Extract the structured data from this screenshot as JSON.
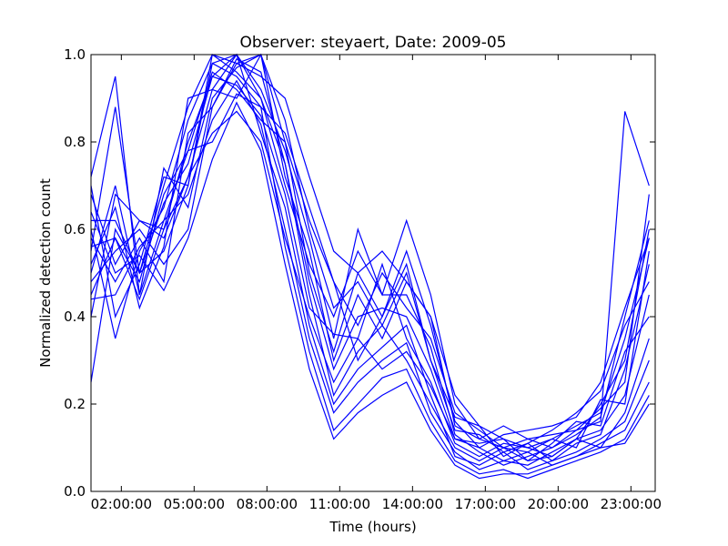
{
  "chart_data": {
    "type": "line",
    "title": "Observer: steyaert, Date: 2009-05",
    "xlabel": "Time (hours)",
    "ylabel": "Normalized detection count",
    "x_unit": "hour of day",
    "xlim": [
      0.75,
      24.0
    ],
    "ylim": [
      0.0,
      1.0
    ],
    "x_ticks": [
      2,
      5,
      8,
      11,
      14,
      17,
      20,
      23
    ],
    "x_tick_labels": [
      "02:00:00",
      "05:00:00",
      "08:00:00",
      "11:00:00",
      "14:00:00",
      "17:00:00",
      "20:00:00",
      "23:00:00"
    ],
    "y_ticks": [
      0.0,
      0.2,
      0.4,
      0.6,
      0.8,
      1.0
    ],
    "y_tick_labels": [
      "0.0",
      "0.2",
      "0.4",
      "0.6",
      "0.8",
      "1.0"
    ],
    "grid": false,
    "legend": "none",
    "line_color": "#0000ff",
    "x": [
      0.75,
      1.75,
      2.75,
      3.75,
      4.75,
      5.75,
      6.75,
      7.75,
      8.75,
      9.75,
      10.75,
      11.75,
      12.75,
      13.75,
      14.75,
      15.75,
      16.75,
      17.75,
      18.75,
      19.75,
      20.75,
      21.75,
      22.75,
      23.75
    ],
    "series": [
      {
        "values": [
          0.72,
          0.95,
          0.45,
          0.62,
          0.78,
          0.96,
          0.92,
          0.85,
          0.8,
          0.62,
          0.48,
          0.38,
          0.5,
          0.42,
          0.35,
          0.18,
          0.14,
          0.1,
          0.12,
          0.1,
          0.14,
          0.16,
          0.87,
          0.7
        ]
      },
      {
        "values": [
          0.55,
          0.88,
          0.5,
          0.7,
          0.88,
          1.0,
          0.98,
          0.95,
          0.9,
          0.72,
          0.55,
          0.5,
          0.55,
          0.48,
          0.4,
          0.22,
          0.15,
          0.12,
          0.1,
          0.08,
          0.12,
          0.2,
          0.3,
          0.6
        ]
      },
      {
        "values": [
          0.45,
          0.58,
          0.44,
          0.6,
          0.8,
          0.95,
          1.0,
          0.9,
          0.7,
          0.52,
          0.4,
          0.55,
          0.45,
          0.62,
          0.45,
          0.2,
          0.12,
          0.1,
          0.09,
          0.12,
          0.15,
          0.18,
          0.35,
          0.58
        ]
      },
      {
        "values": [
          0.25,
          0.6,
          0.5,
          0.55,
          0.7,
          0.98,
          0.95,
          0.88,
          0.82,
          0.65,
          0.48,
          0.3,
          0.4,
          0.55,
          0.38,
          0.16,
          0.1,
          0.07,
          0.06,
          0.09,
          0.12,
          0.14,
          0.22,
          0.45
        ]
      },
      {
        "values": [
          0.68,
          0.52,
          0.62,
          0.58,
          0.72,
          0.92,
          0.9,
          1.0,
          0.85,
          0.6,
          0.42,
          0.48,
          0.38,
          0.5,
          0.3,
          0.14,
          0.13,
          0.09,
          0.11,
          0.07,
          0.11,
          0.13,
          0.28,
          0.52
        ]
      },
      {
        "values": [
          0.6,
          0.35,
          0.55,
          0.65,
          0.85,
          0.98,
          1.0,
          0.92,
          0.78,
          0.58,
          0.35,
          0.6,
          0.45,
          0.45,
          0.33,
          0.13,
          0.09,
          0.06,
          0.08,
          0.1,
          0.13,
          0.17,
          0.4,
          0.62
        ]
      },
      {
        "values": [
          0.5,
          0.7,
          0.45,
          0.74,
          0.65,
          0.9,
          0.97,
          1.0,
          0.72,
          0.55,
          0.3,
          0.45,
          0.35,
          0.48,
          0.4,
          0.15,
          0.12,
          0.15,
          0.12,
          0.13,
          0.14,
          0.19,
          0.25,
          0.68
        ]
      },
      {
        "values": [
          0.58,
          0.48,
          0.58,
          0.48,
          0.82,
          0.88,
          0.99,
          0.96,
          0.75,
          0.48,
          0.28,
          0.4,
          0.42,
          0.4,
          0.28,
          0.12,
          0.11,
          0.12,
          0.07,
          0.11,
          0.16,
          0.15,
          0.32,
          0.4
        ]
      },
      {
        "values": [
          0.62,
          0.62,
          0.5,
          0.66,
          0.75,
          0.95,
          0.93,
          0.86,
          0.68,
          0.42,
          0.36,
          0.35,
          0.52,
          0.35,
          0.25,
          0.11,
          0.08,
          0.11,
          0.1,
          0.12,
          0.1,
          0.21,
          0.2,
          0.55
        ]
      },
      {
        "values": [
          0.48,
          0.55,
          0.6,
          0.52,
          0.6,
          0.88,
          0.98,
          1.0,
          0.8,
          0.5,
          0.32,
          0.5,
          0.4,
          0.52,
          0.3,
          0.17,
          0.15,
          0.08,
          0.11,
          0.14,
          0.18,
          0.23,
          0.38,
          0.48
        ]
      },
      {
        "values": [
          0.7,
          0.4,
          0.52,
          0.72,
          0.7,
          1.0,
          0.96,
          0.9,
          0.75,
          0.45,
          0.22,
          0.32,
          0.38,
          0.3,
          0.2,
          0.1,
          0.07,
          0.1,
          0.07,
          0.08,
          0.12,
          0.1,
          0.18,
          0.35
        ]
      },
      {
        "values": [
          0.52,
          0.65,
          0.42,
          0.56,
          0.9,
          0.92,
          1.0,
          0.82,
          0.65,
          0.38,
          0.2,
          0.28,
          0.33,
          0.38,
          0.22,
          0.08,
          0.06,
          0.09,
          0.05,
          0.07,
          0.09,
          0.12,
          0.16,
          0.3
        ]
      },
      {
        "values": [
          0.44,
          0.45,
          0.56,
          0.62,
          0.68,
          0.85,
          0.94,
          0.84,
          0.6,
          0.35,
          0.18,
          0.25,
          0.3,
          0.34,
          0.18,
          0.09,
          0.05,
          0.07,
          0.09,
          0.06,
          0.08,
          0.11,
          0.14,
          0.25
        ]
      },
      {
        "values": [
          0.56,
          0.58,
          0.48,
          0.68,
          0.78,
          0.8,
          0.91,
          0.88,
          0.56,
          0.32,
          0.14,
          0.2,
          0.26,
          0.28,
          0.16,
          0.07,
          0.04,
          0.05,
          0.03,
          0.05,
          0.07,
          0.09,
          0.12,
          0.22
        ]
      },
      {
        "values": [
          0.64,
          0.5,
          0.54,
          0.46,
          0.58,
          0.76,
          0.89,
          0.78,
          0.52,
          0.28,
          0.12,
          0.18,
          0.22,
          0.25,
          0.14,
          0.06,
          0.03,
          0.04,
          0.04,
          0.06,
          0.08,
          0.1,
          0.11,
          0.2
        ]
      },
      {
        "values": [
          0.4,
          0.68,
          0.62,
          0.6,
          0.72,
          0.82,
          0.87,
          0.8,
          0.58,
          0.4,
          0.25,
          0.35,
          0.28,
          0.32,
          0.24,
          0.12,
          0.1,
          0.13,
          0.14,
          0.15,
          0.17,
          0.25,
          0.42,
          0.58
        ]
      }
    ]
  }
}
